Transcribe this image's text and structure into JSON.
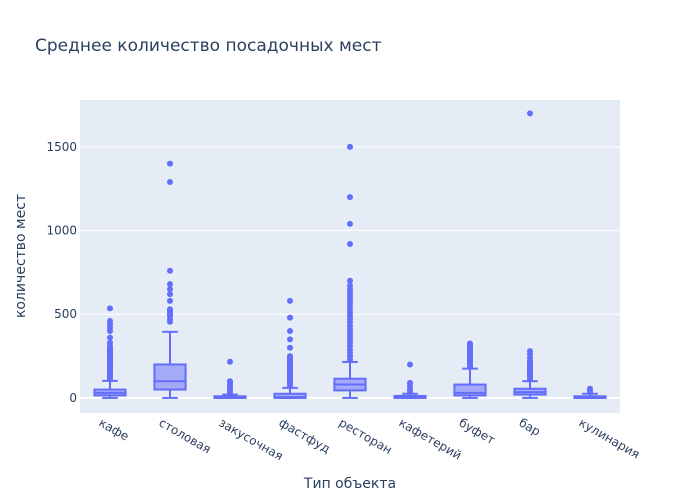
{
  "chart_data": {
    "type": "box",
    "title": "Среднее количество посадочных мест",
    "xlabel": "Тип объекта",
    "ylabel": "количество мест",
    "ylim": [
      -90,
      1780
    ],
    "yticks": [
      0,
      500,
      1000,
      1500
    ],
    "grid": true,
    "colors": {
      "plot_bg": "#e5ecf6",
      "grid": "#ffffff",
      "box_line": "#636efa",
      "box_fill": "#a4aaf8",
      "outlier": "#636efa",
      "text": "#2a3f5f"
    },
    "categories": [
      "кафе",
      "столовая",
      "закусочная",
      "фастфуд",
      "ресторан",
      "кафетерий",
      "буфет",
      "бар",
      "кулинария"
    ],
    "boxes": [
      {
        "category": "кафе",
        "lower_fence": 0,
        "q1": 15,
        "median": 30,
        "q3": 50,
        "upper_fence": 102,
        "outliers": [
          110,
          120,
          130,
          140,
          150,
          160,
          170,
          180,
          190,
          200,
          210,
          220,
          230,
          240,
          250,
          260,
          270,
          280,
          290,
          300,
          310,
          330,
          360,
          400,
          420,
          440,
          460,
          535
        ]
      },
      {
        "category": "столовая",
        "lower_fence": 0,
        "q1": 50,
        "median": 100,
        "q3": 200,
        "upper_fence": 395,
        "outliers": [
          455,
          470,
          490,
          500,
          510,
          520,
          530,
          580,
          620,
          650,
          680,
          760,
          1290,
          1400
        ]
      },
      {
        "category": "закусочная",
        "lower_fence": 0,
        "q1": 0,
        "median": 0,
        "q3": 10,
        "upper_fence": 20,
        "outliers": [
          30,
          40,
          50,
          60,
          75,
          90,
          100,
          216
        ]
      },
      {
        "category": "фастфуд",
        "lower_fence": 0,
        "q1": 0,
        "median": 5,
        "q3": 25,
        "upper_fence": 60,
        "outliers": [
          70,
          80,
          90,
          100,
          110,
          120,
          130,
          140,
          150,
          160,
          170,
          180,
          190,
          200,
          210,
          220,
          230,
          240,
          250,
          300,
          350,
          400,
          480,
          580
        ]
      },
      {
        "category": "ресторан",
        "lower_fence": 0,
        "q1": 45,
        "median": 80,
        "q3": 115,
        "upper_fence": 215,
        "outliers": [
          230,
          250,
          270,
          290,
          310,
          330,
          350,
          370,
          390,
          410,
          430,
          450,
          470,
          490,
          510,
          530,
          550,
          570,
          590,
          610,
          630,
          650,
          670,
          700,
          920,
          1040,
          1200,
          1500
        ]
      },
      {
        "category": "кафетерий",
        "lower_fence": 0,
        "q1": 0,
        "median": 6,
        "q3": 12,
        "upper_fence": 25,
        "outliers": [
          35,
          50,
          70,
          90,
          200
        ]
      },
      {
        "category": "буфет",
        "lower_fence": 0,
        "q1": 15,
        "median": 30,
        "q3": 80,
        "upper_fence": 175,
        "outliers": [
          185,
          195,
          205,
          215,
          225,
          235,
          245,
          255,
          265,
          275,
          285,
          295,
          305,
          315,
          325
        ]
      },
      {
        "category": "бар",
        "lower_fence": 0,
        "q1": 20,
        "median": 35,
        "q3": 55,
        "upper_fence": 100,
        "outliers": [
          110,
          120,
          130,
          140,
          150,
          160,
          170,
          180,
          190,
          200,
          210,
          220,
          240,
          260,
          280,
          1700
        ]
      },
      {
        "category": "кулинария",
        "lower_fence": 0,
        "q1": 0,
        "median": 0,
        "q3": 10,
        "upper_fence": 25,
        "outliers": [
          35,
          45,
          55
        ]
      }
    ]
  }
}
